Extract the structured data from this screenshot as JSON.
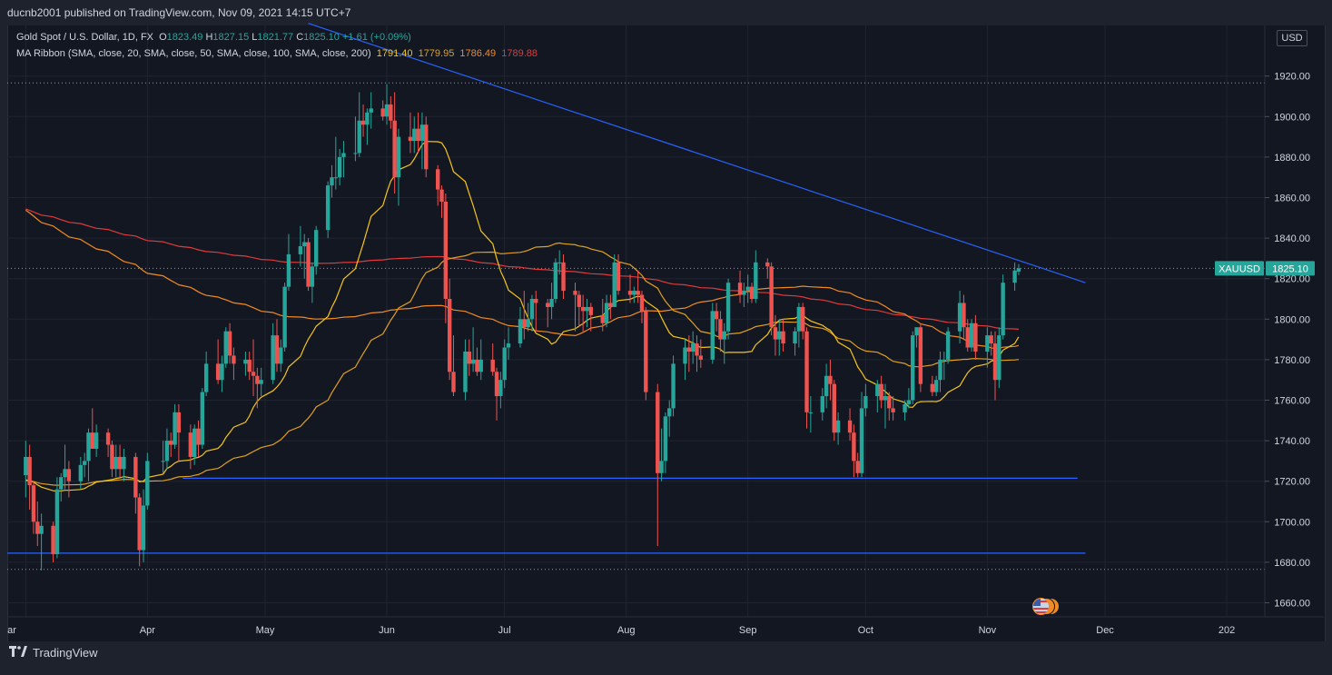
{
  "header": {
    "publisher_text": "ducnb2001 published on TradingView.com, Nov 09, 2021 14:15 UTC+7"
  },
  "legend": {
    "symbol_line": "Gold Spot / U.S. Dollar, 1D, FX",
    "open_label": "O",
    "open": "1823.49",
    "high_label": "H",
    "high": "1827.15",
    "low_label": "L",
    "low": "1821.77",
    "close_label": "C",
    "close": "1825.10",
    "change": "+1.61 (+0.09%)",
    "ma_line": "MA Ribbon (SMA, close, 20, SMA, close, 50, SMA, close, 100, SMA, close, 200)",
    "ma20": "1791.40",
    "ma50": "1779.95",
    "ma100": "1786.49",
    "ma200": "1789.88"
  },
  "currency_label": "USD",
  "price_tag": {
    "symbol": "XAUUSD",
    "price": "1825.10"
  },
  "footer": {
    "brand": "TradingView"
  },
  "colors": {
    "bg": "#131722",
    "up": "#26a69a",
    "down": "#ef5350",
    "ma20": "#f5c518",
    "ma50": "#e0a020",
    "ma100": "#f08a24",
    "ma200": "#e03a3a",
    "trendline": "#2962ff",
    "tag": "#26a69a"
  },
  "chart_data": {
    "type": "candlestick",
    "title": "Gold Spot / U.S. Dollar, 1D, FX",
    "y_axis_ticks": [
      1660,
      1680,
      1700,
      1720,
      1740,
      1760,
      1780,
      1800,
      1820,
      1840,
      1860,
      1880,
      1900,
      1920
    ],
    "x_axis_labels": [
      "ar",
      "Apr",
      "May",
      "Jun",
      "Jul",
      "Aug",
      "Sep",
      "Oct",
      "Nov",
      "Dec",
      "202"
    ],
    "ylim": [
      1652,
      1945
    ],
    "grid": true,
    "legend_placement": "top-left",
    "dotted_levels": [
      1916.6,
      1825.1,
      1676.5
    ],
    "horizontal_levels": [
      1721.5,
      1684.5
    ],
    "trendline": [
      {
        "date": "2021-05-12",
        "price": 1946
      },
      {
        "date": "2021-11-26",
        "price": 1818
      }
    ],
    "candles": [
      [
        "2021-03-01",
        1723,
        1740,
        1712,
        1732
      ],
      [
        "2021-03-02",
        1732,
        1738,
        1706,
        1718
      ],
      [
        "2021-03-03",
        1718,
        1720,
        1694,
        1700
      ],
      [
        "2021-03-04",
        1700,
        1710,
        1688,
        1694
      ],
      [
        "2021-03-05",
        1694,
        1704,
        1676,
        1698
      ],
      [
        "2021-03-08",
        1698,
        1700,
        1680,
        1684
      ],
      [
        "2021-03-09",
        1684,
        1722,
        1682,
        1716
      ],
      [
        "2021-03-10",
        1716,
        1724,
        1710,
        1722
      ],
      [
        "2021-03-11",
        1722,
        1738,
        1716,
        1726
      ],
      [
        "2021-03-12",
        1726,
        1730,
        1712,
        1720
      ],
      [
        "2021-03-15",
        1720,
        1732,
        1716,
        1728
      ],
      [
        "2021-03-16",
        1728,
        1734,
        1722,
        1730
      ],
      [
        "2021-03-17",
        1730,
        1746,
        1720,
        1744
      ],
      [
        "2021-03-18",
        1744,
        1756,
        1736,
        1736
      ],
      [
        "2021-03-19",
        1736,
        1748,
        1732,
        1744
      ],
      [
        "2021-03-22",
        1744,
        1746,
        1732,
        1738
      ],
      [
        "2021-03-23",
        1738,
        1740,
        1722,
        1726
      ],
      [
        "2021-03-24",
        1726,
        1738,
        1722,
        1732
      ],
      [
        "2021-03-25",
        1732,
        1738,
        1722,
        1726
      ],
      [
        "2021-03-26",
        1726,
        1736,
        1720,
        1732
      ],
      [
        "2021-03-29",
        1732,
        1734,
        1704,
        1712
      ],
      [
        "2021-03-30",
        1712,
        1714,
        1678,
        1686
      ],
      [
        "2021-03-31",
        1686,
        1716,
        1680,
        1708
      ],
      [
        "2021-04-01",
        1708,
        1734,
        1706,
        1730
      ],
      [
        "2021-04-05",
        1730,
        1740,
        1724,
        1730
      ],
      [
        "2021-04-06",
        1730,
        1746,
        1726,
        1740
      ],
      [
        "2021-04-07",
        1740,
        1744,
        1732,
        1738
      ],
      [
        "2021-04-08",
        1738,
        1758,
        1736,
        1754
      ],
      [
        "2021-04-09",
        1754,
        1758,
        1730,
        1744
      ],
      [
        "2021-04-12",
        1744,
        1748,
        1726,
        1732
      ],
      [
        "2021-04-13",
        1732,
        1748,
        1728,
        1746
      ],
      [
        "2021-04-14",
        1746,
        1750,
        1732,
        1738
      ],
      [
        "2021-04-15",
        1738,
        1766,
        1736,
        1764
      ],
      [
        "2021-04-16",
        1764,
        1784,
        1762,
        1778
      ],
      [
        "2021-04-19",
        1778,
        1790,
        1768,
        1770
      ],
      [
        "2021-04-20",
        1770,
        1782,
        1764,
        1778
      ],
      [
        "2021-04-21",
        1778,
        1796,
        1776,
        1794
      ],
      [
        "2021-04-22",
        1794,
        1798,
        1778,
        1782
      ],
      [
        "2021-04-23",
        1782,
        1786,
        1770,
        1778
      ],
      [
        "2021-04-26",
        1778,
        1784,
        1772,
        1780
      ],
      [
        "2021-04-27",
        1780,
        1784,
        1770,
        1774
      ],
      [
        "2021-04-28",
        1774,
        1790,
        1762,
        1772
      ],
      [
        "2021-04-29",
        1772,
        1776,
        1756,
        1768
      ],
      [
        "2021-04-30",
        1768,
        1776,
        1762,
        1770
      ],
      [
        "2021-05-03",
        1770,
        1798,
        1768,
        1792
      ],
      [
        "2021-05-04",
        1792,
        1800,
        1774,
        1778
      ],
      [
        "2021-05-05",
        1778,
        1790,
        1774,
        1786
      ],
      [
        "2021-05-06",
        1786,
        1818,
        1784,
        1816
      ],
      [
        "2021-05-07",
        1816,
        1842,
        1814,
        1832
      ],
      [
        "2021-05-10",
        1832,
        1846,
        1826,
        1836
      ],
      [
        "2021-05-11",
        1836,
        1842,
        1820,
        1838
      ],
      [
        "2021-05-12",
        1838,
        1840,
        1814,
        1816
      ],
      [
        "2021-05-13",
        1816,
        1828,
        1808,
        1826
      ],
      [
        "2021-05-14",
        1826,
        1846,
        1822,
        1844
      ],
      [
        "2021-05-17",
        1844,
        1868,
        1840,
        1866
      ],
      [
        "2021-05-18",
        1866,
        1876,
        1860,
        1870
      ],
      [
        "2021-05-19",
        1870,
        1890,
        1864,
        1870
      ],
      [
        "2021-05-20",
        1870,
        1884,
        1866,
        1880
      ],
      [
        "2021-05-21",
        1880,
        1888,
        1870,
        1882
      ],
      [
        "2021-05-24",
        1882,
        1900,
        1878,
        1882
      ],
      [
        "2021-05-25",
        1882,
        1912,
        1880,
        1898
      ],
      [
        "2021-05-26",
        1898,
        1906,
        1890,
        1896
      ],
      [
        "2021-05-27",
        1896,
        1904,
        1886,
        1902
      ],
      [
        "2021-05-28",
        1902,
        1912,
        1894,
        1904
      ],
      [
        "2021-05-31",
        1904,
        1908,
        1898,
        1900
      ],
      [
        "2021-06-01",
        1900,
        1916,
        1896,
        1906
      ],
      [
        "2021-06-02",
        1906,
        1910,
        1894,
        1898
      ],
      [
        "2021-06-03",
        1898,
        1912,
        1862,
        1870
      ],
      [
        "2021-06-04",
        1870,
        1894,
        1856,
        1890
      ],
      [
        "2021-06-07",
        1890,
        1902,
        1882,
        1888
      ],
      [
        "2021-06-08",
        1888,
        1900,
        1882,
        1894
      ],
      [
        "2021-06-09",
        1894,
        1902,
        1882,
        1888
      ],
      [
        "2021-06-10",
        1888,
        1902,
        1874,
        1896
      ],
      [
        "2021-06-11",
        1896,
        1900,
        1870,
        1874
      ],
      [
        "2021-06-14",
        1874,
        1876,
        1856,
        1864
      ],
      [
        "2021-06-15",
        1864,
        1866,
        1850,
        1858
      ],
      [
        "2021-06-16",
        1858,
        1862,
        1798,
        1810
      ],
      [
        "2021-06-17",
        1810,
        1820,
        1770,
        1774
      ],
      [
        "2021-06-18",
        1774,
        1792,
        1762,
        1764
      ],
      [
        "2021-06-21",
        1764,
        1790,
        1760,
        1784
      ],
      [
        "2021-06-22",
        1784,
        1790,
        1772,
        1778
      ],
      [
        "2021-06-23",
        1778,
        1796,
        1774,
        1780
      ],
      [
        "2021-06-24",
        1780,
        1786,
        1772,
        1774
      ],
      [
        "2021-06-25",
        1774,
        1790,
        1770,
        1780
      ],
      [
        "2021-06-28",
        1780,
        1788,
        1772,
        1774
      ],
      [
        "2021-06-29",
        1774,
        1776,
        1750,
        1762
      ],
      [
        "2021-06-30",
        1762,
        1774,
        1756,
        1770
      ],
      [
        "2021-07-01",
        1770,
        1790,
        1766,
        1786
      ],
      [
        "2021-07-02",
        1786,
        1796,
        1780,
        1788
      ],
      [
        "2021-07-05",
        1788,
        1806,
        1786,
        1800
      ],
      [
        "2021-07-06",
        1800,
        1814,
        1790,
        1796
      ],
      [
        "2021-07-07",
        1796,
        1808,
        1794,
        1800
      ],
      [
        "2021-07-08",
        1800,
        1812,
        1794,
        1810
      ],
      [
        "2021-07-09",
        1810,
        1814,
        1794,
        1808
      ],
      [
        "2021-07-12",
        1808,
        1810,
        1796,
        1806
      ],
      [
        "2021-07-13",
        1806,
        1818,
        1800,
        1810
      ],
      [
        "2021-07-14",
        1810,
        1830,
        1808,
        1828
      ],
      [
        "2021-07-15",
        1828,
        1834,
        1822,
        1828
      ],
      [
        "2021-07-16",
        1828,
        1832,
        1810,
        1814
      ],
      [
        "2021-07-19",
        1814,
        1818,
        1794,
        1812
      ],
      [
        "2021-07-20",
        1812,
        1814,
        1796,
        1806
      ],
      [
        "2021-07-21",
        1806,
        1812,
        1794,
        1804
      ],
      [
        "2021-07-22",
        1804,
        1810,
        1796,
        1806
      ],
      [
        "2021-07-23",
        1806,
        1808,
        1794,
        1802
      ],
      [
        "2021-07-26",
        1802,
        1810,
        1794,
        1798
      ],
      [
        "2021-07-27",
        1798,
        1812,
        1796,
        1808
      ],
      [
        "2021-07-28",
        1808,
        1812,
        1800,
        1806
      ],
      [
        "2021-07-29",
        1806,
        1832,
        1806,
        1828
      ],
      [
        "2021-07-30",
        1828,
        1832,
        1812,
        1814
      ],
      [
        "2021-08-02",
        1814,
        1822,
        1808,
        1812
      ],
      [
        "2021-08-03",
        1812,
        1816,
        1808,
        1814
      ],
      [
        "2021-08-04",
        1814,
        1824,
        1808,
        1812
      ],
      [
        "2021-08-05",
        1812,
        1814,
        1798,
        1804
      ],
      [
        "2021-08-06",
        1804,
        1806,
        1760,
        1764
      ],
      [
        "2021-08-09",
        1764,
        1768,
        1688,
        1724
      ],
      [
        "2021-08-10",
        1724,
        1746,
        1720,
        1730
      ],
      [
        "2021-08-11",
        1730,
        1754,
        1724,
        1752
      ],
      [
        "2021-08-12",
        1752,
        1760,
        1742,
        1756
      ],
      [
        "2021-08-13",
        1756,
        1782,
        1752,
        1778
      ],
      [
        "2021-08-16",
        1778,
        1790,
        1770,
        1786
      ],
      [
        "2021-08-17",
        1786,
        1792,
        1774,
        1784
      ],
      [
        "2021-08-18",
        1784,
        1794,
        1778,
        1788
      ],
      [
        "2021-08-19",
        1788,
        1792,
        1774,
        1782
      ],
      [
        "2021-08-20",
        1782,
        1790,
        1776,
        1780
      ],
      [
        "2021-08-23",
        1780,
        1808,
        1778,
        1804
      ],
      [
        "2021-08-24",
        1804,
        1808,
        1794,
        1800
      ],
      [
        "2021-08-25",
        1800,
        1804,
        1784,
        1790
      ],
      [
        "2021-08-26",
        1790,
        1798,
        1778,
        1794
      ],
      [
        "2021-08-27",
        1794,
        1820,
        1790,
        1818
      ],
      [
        "2021-08-30",
        1818,
        1824,
        1808,
        1812
      ],
      [
        "2021-08-31",
        1812,
        1818,
        1806,
        1814
      ],
      [
        "2021-09-01",
        1814,
        1822,
        1808,
        1816
      ],
      [
        "2021-09-02",
        1816,
        1818,
        1808,
        1810
      ],
      [
        "2021-09-03",
        1810,
        1834,
        1808,
        1828
      ],
      [
        "2021-09-06",
        1828,
        1830,
        1820,
        1826
      ],
      [
        "2021-09-07",
        1826,
        1828,
        1792,
        1796
      ],
      [
        "2021-09-08",
        1796,
        1802,
        1782,
        1790
      ],
      [
        "2021-09-09",
        1790,
        1800,
        1782,
        1794
      ],
      [
        "2021-09-10",
        1794,
        1800,
        1784,
        1788
      ],
      [
        "2021-09-13",
        1788,
        1796,
        1782,
        1794
      ],
      [
        "2021-09-14",
        1794,
        1808,
        1786,
        1806
      ],
      [
        "2021-09-15",
        1806,
        1808,
        1790,
        1794
      ],
      [
        "2021-09-16",
        1794,
        1796,
        1746,
        1754
      ],
      [
        "2021-09-17",
        1754,
        1762,
        1744,
        1754
      ],
      [
        "2021-09-20",
        1754,
        1766,
        1750,
        1762
      ],
      [
        "2021-09-21",
        1762,
        1778,
        1756,
        1772
      ],
      [
        "2021-09-22",
        1772,
        1780,
        1760,
        1768
      ],
      [
        "2021-09-23",
        1768,
        1770,
        1740,
        1744
      ],
      [
        "2021-09-24",
        1744,
        1754,
        1738,
        1750
      ],
      [
        "2021-09-27",
        1750,
        1756,
        1740,
        1744
      ],
      [
        "2021-09-28",
        1744,
        1748,
        1722,
        1730
      ],
      [
        "2021-09-29",
        1730,
        1734,
        1722,
        1724
      ],
      [
        "2021-09-30",
        1724,
        1764,
        1722,
        1756
      ],
      [
        "2021-10-01",
        1756,
        1768,
        1752,
        1762
      ],
      [
        "2021-10-04",
        1762,
        1770,
        1754,
        1768
      ],
      [
        "2021-10-05",
        1768,
        1772,
        1756,
        1760
      ],
      [
        "2021-10-06",
        1760,
        1768,
        1746,
        1762
      ],
      [
        "2021-10-07",
        1762,
        1764,
        1750,
        1756
      ],
      [
        "2021-10-08",
        1756,
        1762,
        1750,
        1754
      ],
      [
        "2021-10-11",
        1754,
        1760,
        1750,
        1758
      ],
      [
        "2021-10-12",
        1758,
        1766,
        1756,
        1760
      ],
      [
        "2021-10-13",
        1760,
        1794,
        1758,
        1792
      ],
      [
        "2021-10-14",
        1792,
        1796,
        1786,
        1796
      ],
      [
        "2021-10-15",
        1796,
        1798,
        1764,
        1768
      ],
      [
        "2021-10-18",
        1768,
        1772,
        1762,
        1764
      ],
      [
        "2021-10-19",
        1764,
        1772,
        1762,
        1770
      ],
      [
        "2021-10-20",
        1770,
        1784,
        1764,
        1780
      ],
      [
        "2021-10-21",
        1780,
        1784,
        1770,
        1780
      ],
      [
        "2021-10-22",
        1780,
        1796,
        1778,
        1794
      ],
      [
        "2021-10-25",
        1794,
        1814,
        1788,
        1808
      ],
      [
        "2021-10-26",
        1808,
        1812,
        1790,
        1796
      ],
      [
        "2021-10-27",
        1796,
        1800,
        1784,
        1786
      ],
      [
        "2021-10-28",
        1786,
        1800,
        1784,
        1798
      ],
      [
        "2021-10-29",
        1798,
        1802,
        1780,
        1784
      ],
      [
        "2021-11-01",
        1784,
        1796,
        1776,
        1792
      ],
      [
        "2021-11-02",
        1792,
        1794,
        1782,
        1788
      ],
      [
        "2021-11-03",
        1788,
        1794,
        1760,
        1770
      ],
      [
        "2021-11-04",
        1770,
        1796,
        1766,
        1792
      ],
      [
        "2021-11-05",
        1792,
        1822,
        1790,
        1818
      ],
      [
        "2021-11-08",
        1818,
        1828,
        1814,
        1824
      ],
      [
        "2021-11-09",
        1823.49,
        1827.15,
        1821.77,
        1825.1
      ]
    ]
  }
}
